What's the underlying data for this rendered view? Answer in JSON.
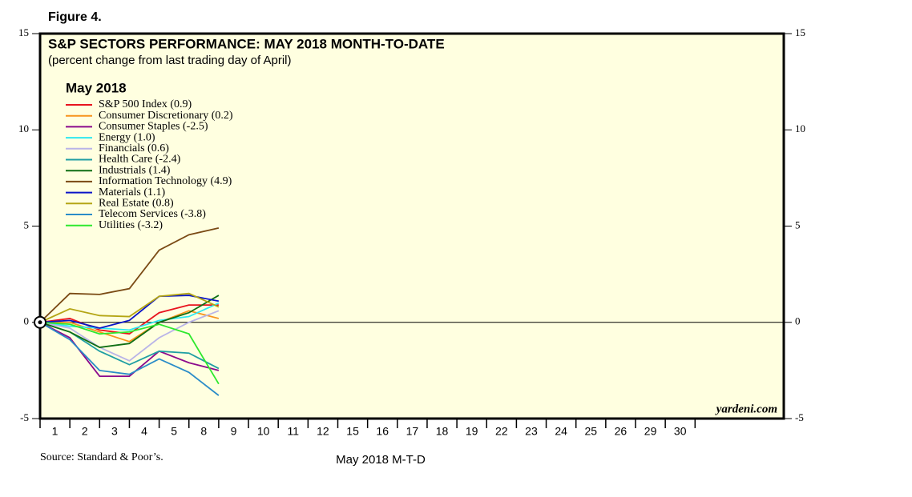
{
  "chart_data": {
    "type": "line",
    "figure_label": "Figure 4.",
    "title": "S&P SECTORS PERFORMANCE: MAY 2018 MONTH-TO-DATE",
    "subtitle": "(percent change from last trading day of April)",
    "legend_title": "May 2018",
    "x_label": "May 2018 M-T-D",
    "source": "Source: Standard & Poor’s.",
    "annotation": "yardeni.com",
    "categories": [
      null,
      "1",
      "2",
      "3",
      "4",
      "5",
      "8",
      "9",
      "10",
      "11",
      "12",
      "15",
      "16",
      "17",
      "18",
      "19",
      "22",
      "23",
      "24",
      "25",
      "26",
      "29",
      "30"
    ],
    "ylim": [
      -5,
      15
    ],
    "yticks": [
      -5,
      0,
      5,
      10,
      15
    ],
    "series": [
      {
        "name": "S&P 500 Index (0.9)",
        "color": "#e8141e",
        "values": [
          0,
          0.2,
          -0.4,
          -0.6,
          0.5,
          0.9,
          0.9,
          null,
          null,
          null,
          null,
          null,
          null,
          null,
          null,
          null,
          null,
          null,
          null,
          null,
          null,
          null,
          null
        ]
      },
      {
        "name": "Consumer Discretionary (0.2)",
        "color": "#f7941d",
        "values": [
          0,
          0.0,
          -0.5,
          -1.0,
          0.0,
          0.6,
          0.2,
          null,
          null,
          null,
          null,
          null,
          null,
          null,
          null,
          null,
          null,
          null,
          null,
          null,
          null,
          null,
          null
        ]
      },
      {
        "name": "Consumer Staples (-2.5)",
        "color": "#8b0a8c",
        "values": [
          0,
          -0.8,
          -2.8,
          -2.8,
          -1.5,
          -2.1,
          -2.5,
          null,
          null,
          null,
          null,
          null,
          null,
          null,
          null,
          null,
          null,
          null,
          null,
          null,
          null,
          null,
          null
        ]
      },
      {
        "name": "Energy (1.0)",
        "color": "#2ee8f0",
        "values": [
          0,
          -0.2,
          -0.3,
          -0.4,
          0.1,
          0.3,
          1.0,
          null,
          null,
          null,
          null,
          null,
          null,
          null,
          null,
          null,
          null,
          null,
          null,
          null,
          null,
          null,
          null
        ]
      },
      {
        "name": "Financials (0.6)",
        "color": "#b9b4e8",
        "values": [
          0,
          -0.3,
          -1.3,
          -2.0,
          -0.8,
          0.0,
          0.6,
          null,
          null,
          null,
          null,
          null,
          null,
          null,
          null,
          null,
          null,
          null,
          null,
          null,
          null,
          null,
          null
        ]
      },
      {
        "name": "Health Care (-2.4)",
        "color": "#1f9ea3",
        "values": [
          0,
          -0.5,
          -1.5,
          -2.2,
          -1.5,
          -1.6,
          -2.4,
          null,
          null,
          null,
          null,
          null,
          null,
          null,
          null,
          null,
          null,
          null,
          null,
          null,
          null,
          null,
          null
        ]
      },
      {
        "name": "Industrials (1.4)",
        "color": "#0f6e14",
        "values": [
          0,
          -0.5,
          -1.3,
          -1.1,
          0.0,
          0.5,
          1.4,
          null,
          null,
          null,
          null,
          null,
          null,
          null,
          null,
          null,
          null,
          null,
          null,
          null,
          null,
          null,
          null
        ]
      },
      {
        "name": "Information Technology (4.9)",
        "color": "#7a4a14",
        "values": [
          0,
          1.5,
          1.45,
          1.75,
          3.75,
          4.55,
          4.9,
          null,
          null,
          null,
          null,
          null,
          null,
          null,
          null,
          null,
          null,
          null,
          null,
          null,
          null,
          null,
          null
        ]
      },
      {
        "name": "Materials (1.1)",
        "color": "#0a14c8",
        "values": [
          0,
          0.1,
          -0.3,
          0.1,
          1.35,
          1.4,
          1.1,
          null,
          null,
          null,
          null,
          null,
          null,
          null,
          null,
          null,
          null,
          null,
          null,
          null,
          null,
          null,
          null
        ]
      },
      {
        "name": "Real Estate (0.8)",
        "color": "#b4a514",
        "values": [
          0,
          0.7,
          0.35,
          0.3,
          1.35,
          1.5,
          0.8,
          null,
          null,
          null,
          null,
          null,
          null,
          null,
          null,
          null,
          null,
          null,
          null,
          null,
          null,
          null,
          null
        ]
      },
      {
        "name": "Telecom Services (-3.8)",
        "color": "#2a8cc8",
        "values": [
          0,
          -0.9,
          -2.5,
          -2.7,
          -1.9,
          -2.6,
          -3.8,
          null,
          null,
          null,
          null,
          null,
          null,
          null,
          null,
          null,
          null,
          null,
          null,
          null,
          null,
          null,
          null
        ]
      },
      {
        "name": "Utilities (-3.2)",
        "color": "#2ee82e",
        "values": [
          0,
          -0.1,
          -0.6,
          -0.5,
          -0.1,
          -0.6,
          -3.2,
          null,
          null,
          null,
          null,
          null,
          null,
          null,
          null,
          null,
          null,
          null,
          null,
          null,
          null,
          null,
          null
        ]
      }
    ]
  }
}
